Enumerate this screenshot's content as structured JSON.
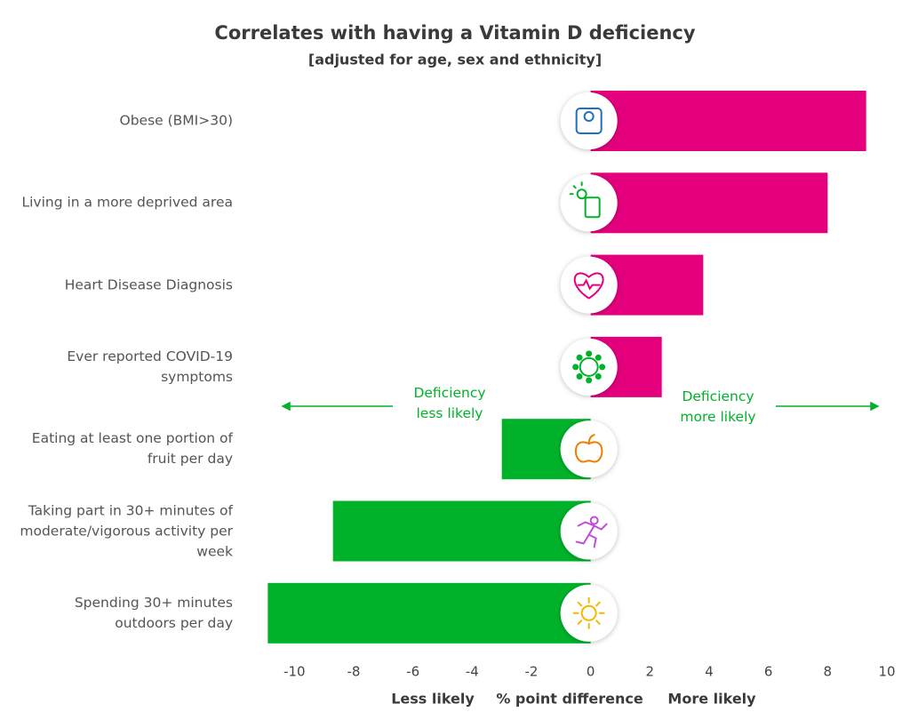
{
  "chart_data": {
    "type": "hbar",
    "title": "Correlates with having a Vitamin D deficiency",
    "subtitle": "[adjusted for age, sex and ethnicity]",
    "categories": [
      "Obese (BMI>30)",
      "Living in a more deprived area",
      "Heart Disease Diagnosis",
      "Ever reported COVID-19 symptoms",
      "Eating at least one portion of fruit per day",
      "Taking part in 30+ minutes of moderate/vigorous activity per week",
      "Spending 30+ minutes outdoors per day"
    ],
    "values": [
      9.3,
      8.0,
      3.8,
      2.4,
      -3.0,
      -8.7,
      -10.9
    ],
    "colors": [
      "#e4007c",
      "#e4007c",
      "#e4007c",
      "#e4007c",
      "#00b22a",
      "#00b22a",
      "#00b22a"
    ],
    "xlim": [
      -11,
      10
    ],
    "xticks": [
      -10,
      -8,
      -6,
      -4,
      -2,
      0,
      2,
      4,
      6,
      8,
      10
    ],
    "grid": false,
    "annotations": [
      "Deficiency less likely",
      "Deficiency more likely"
    ],
    "xlabels": [
      "Less likely",
      "% point difference",
      "More likely"
    ]
  }
}
